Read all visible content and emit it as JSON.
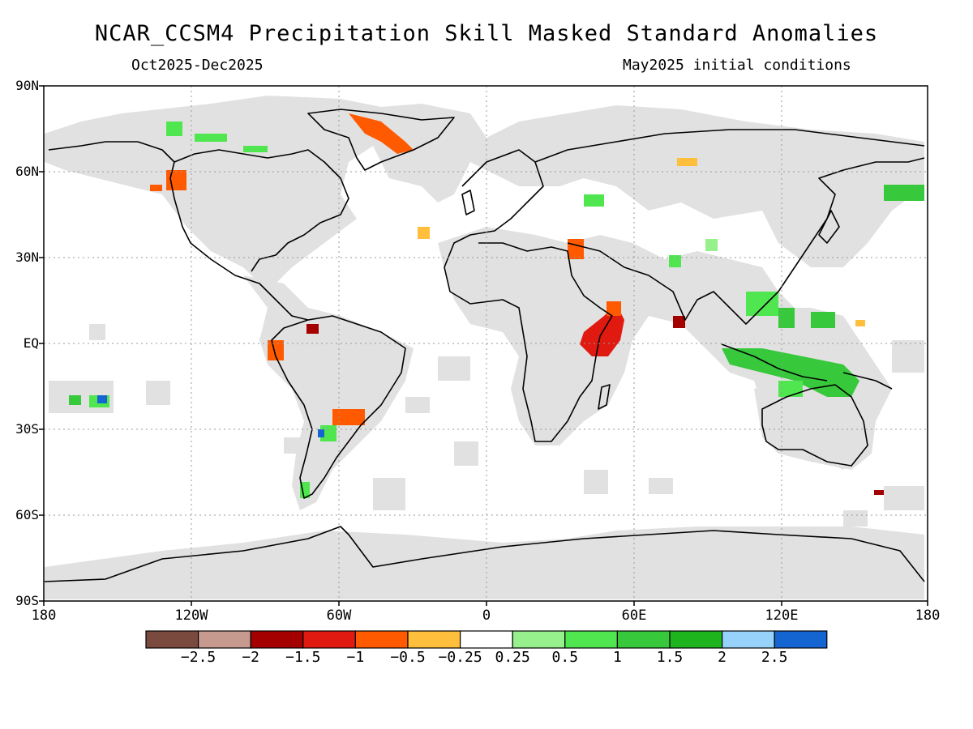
{
  "title": "NCAR_CCSM4 Precipitation Skill Masked Standard Anomalies",
  "subtitle_left": "Oct2025-Dec2025",
  "subtitle_right": "May2025 initial conditions",
  "axes": {
    "lat_labels": [
      "90N",
      "60N",
      "30N",
      "EQ",
      "30S",
      "60S",
      "90S"
    ],
    "lon_labels": [
      "180",
      "120W",
      "60W",
      "0",
      "60E",
      "120E",
      "180"
    ]
  },
  "colorbar": {
    "colors": [
      "#7a4a3e",
      "#c79a90",
      "#a50000",
      "#e01a10",
      "#ff5a00",
      "#ffbe3c",
      "#ffffff",
      "#96f08c",
      "#50e650",
      "#37c83c",
      "#1eb41e",
      "#96d2fa",
      "#1464d2"
    ],
    "labels": [
      "-2.5",
      "-2",
      "-1.5",
      "-1",
      "-0.5",
      "-0.25",
      "0.25",
      "0.5",
      "1",
      "1.5",
      "2",
      "2.5"
    ]
  },
  "colors": {
    "mask_gray": "#e1e1e1",
    "coastline": "#000000"
  }
}
